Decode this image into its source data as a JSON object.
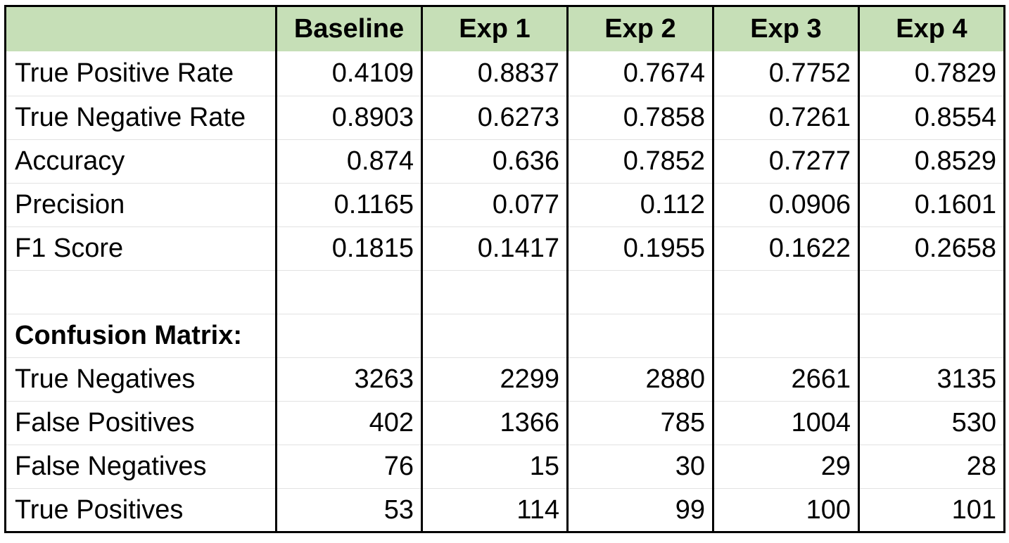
{
  "table": {
    "columns": [
      "",
      "Baseline",
      "Exp 1",
      "Exp 2",
      "Exp 3",
      "Exp 4"
    ],
    "metrics": [
      {
        "label": "True Positive Rate",
        "values": [
          "0.4109",
          "0.8837",
          "0.7674",
          "0.7752",
          "0.7829"
        ]
      },
      {
        "label": "True Negative Rate",
        "values": [
          "0.8903",
          "0.6273",
          "0.7858",
          "0.7261",
          "0.8554"
        ]
      },
      {
        "label": "Accuracy",
        "values": [
          "0.874",
          "0.636",
          "0.7852",
          "0.7277",
          "0.8529"
        ]
      },
      {
        "label": "Precision",
        "values": [
          "0.1165",
          "0.077",
          "0.112",
          "0.0906",
          "0.1601"
        ]
      },
      {
        "label": "F1 Score",
        "values": [
          "0.1815",
          "0.1417",
          "0.1955",
          "0.1622",
          "0.2658"
        ]
      }
    ],
    "confusion_title": "Confusion Matrix:",
    "confusion": [
      {
        "label": "True Negatives",
        "values": [
          "3263",
          "2299",
          "2880",
          "2661",
          "3135"
        ]
      },
      {
        "label": "False Positives",
        "values": [
          "402",
          "1366",
          "785",
          "1004",
          "530"
        ]
      },
      {
        "label": "False Negatives",
        "values": [
          "76",
          "15",
          "30",
          "29",
          "28"
        ]
      },
      {
        "label": "True Positives",
        "values": [
          "53",
          "114",
          "99",
          "100",
          "101"
        ]
      }
    ]
  },
  "colors": {
    "header_bg": "#c6dfb7",
    "grid_line": "#e2e2e2",
    "border": "#000000"
  }
}
